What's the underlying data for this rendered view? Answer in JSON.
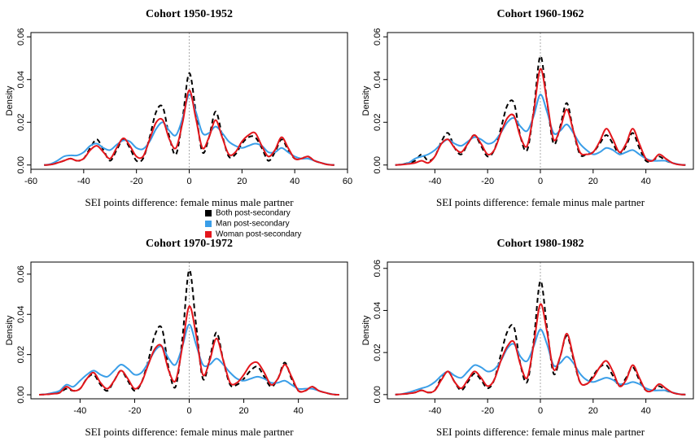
{
  "chart_data": [
    {
      "type": "line",
      "title": "Cohort 1950-1952",
      "x_label": "SEI points difference: female minus male partner",
      "y_label": "Density",
      "x": [
        -55,
        -52.5,
        -50,
        -47.5,
        -45,
        -42.5,
        -40,
        -37.5,
        -35,
        -32.5,
        -30,
        -27.5,
        -25,
        -22.5,
        -20,
        -17.5,
        -15,
        -12.5,
        -10,
        -7.5,
        -5,
        -2.5,
        0,
        2.5,
        5,
        7.5,
        10,
        12.5,
        15,
        17.5,
        20,
        22.5,
        25,
        27.5,
        30,
        32.5,
        35,
        37.5,
        40,
        42.5,
        45,
        47.5,
        50,
        52.5,
        55
      ],
      "series": [
        {
          "name": "Both post-secondary",
          "color": "#000000",
          "line_style": "dashed",
          "values": [
            0,
            0.0002,
            0.001,
            0.002,
            0.003,
            0.002,
            0.003,
            0.008,
            0.012,
            0.007,
            0.002,
            0.007,
            0.012,
            0.008,
            0.002,
            0.003,
            0.013,
            0.025,
            0.027,
            0.013,
            0.005,
            0.022,
            0.043,
            0.025,
            0.006,
            0.013,
            0.025,
            0.014,
            0.004,
            0.005,
            0.01,
            0.013,
            0.013,
            0.008,
            0.002,
            0.006,
            0.012,
            0.007,
            0.003,
            0.003,
            0.004,
            0.002,
            0.001,
            0.0002,
            0
          ]
        },
        {
          "name": "Man post-secondary",
          "color": "#3a9ee8",
          "line_style": "solid",
          "values": [
            0,
            0.0005,
            0.002,
            0.004,
            0.0045,
            0.0045,
            0.006,
            0.009,
            0.01,
            0.008,
            0.007,
            0.0095,
            0.0115,
            0.011,
            0.008,
            0.0075,
            0.011,
            0.017,
            0.02,
            0.016,
            0.014,
            0.022,
            0.033,
            0.025,
            0.015,
            0.015,
            0.018,
            0.015,
            0.011,
            0.009,
            0.008,
            0.009,
            0.01,
            0.009,
            0.006,
            0.006,
            0.008,
            0.006,
            0.004,
            0.003,
            0.003,
            0.002,
            0.001,
            0.0003,
            0
          ]
        },
        {
          "name": "Woman post-secondary",
          "color": "#e3161c",
          "line_style": "solid",
          "values": [
            0,
            0.0002,
            0.001,
            0.002,
            0.003,
            0.002,
            0.003,
            0.007,
            0.009,
            0.006,
            0.003,
            0.008,
            0.0125,
            0.009,
            0.004,
            0.004,
            0.012,
            0.02,
            0.021,
            0.012,
            0.008,
            0.02,
            0.035,
            0.022,
            0.008,
            0.013,
            0.021,
            0.013,
            0.005,
            0.006,
            0.011,
            0.014,
            0.015,
            0.009,
            0.004,
            0.007,
            0.013,
            0.008,
            0.003,
            0.003,
            0.004,
            0.002,
            0.001,
            0.0002,
            0
          ]
        }
      ],
      "xlim": [
        -60,
        60
      ],
      "xticks": [
        -60,
        -40,
        -20,
        0,
        20,
        40,
        60
      ],
      "ylim": [
        -0.002,
        0.062
      ],
      "yticks": [
        {
          "value": 0,
          "label": "0.00"
        },
        {
          "value": 0.02,
          "label": "0.02"
        },
        {
          "value": 0.04,
          "label": "0.04"
        },
        {
          "value": 0.06,
          "label": "0.06"
        }
      ],
      "reference_line_x": 0
    },
    {
      "type": "line",
      "title": "Cohort 1960-1962",
      "x_label": "SEI points difference: female minus male partner",
      "y_label": "Density",
      "x": [
        -55,
        -52.5,
        -50,
        -47.5,
        -45,
        -42.5,
        -40,
        -37.5,
        -35,
        -32.5,
        -30,
        -27.5,
        -25,
        -22.5,
        -20,
        -17.5,
        -15,
        -12.5,
        -10,
        -7.5,
        -5,
        -2.5,
        0,
        2.5,
        5,
        7.5,
        10,
        12.5,
        15,
        17.5,
        20,
        22.5,
        25,
        27.5,
        30,
        32.5,
        35,
        37.5,
        40,
        42.5,
        45,
        47.5,
        50,
        52.5,
        55
      ],
      "series": [
        {
          "name": "Both post-secondary",
          "color": "#000000",
          "line_style": "dashed",
          "values": [
            0,
            0.0003,
            0.001,
            0.002,
            0.005,
            0.002,
            0.004,
            0.011,
            0.015,
            0.008,
            0.005,
            0.01,
            0.014,
            0.009,
            0.004,
            0.007,
            0.017,
            0.028,
            0.029,
            0.013,
            0.007,
            0.026,
            0.051,
            0.03,
            0.01,
            0.018,
            0.029,
            0.016,
            0.005,
            0.005,
            0.006,
            0.01,
            0.014,
            0.01,
            0.005,
            0.009,
            0.015,
            0.008,
            0.002,
            0.002,
            0.004,
            0.002,
            0.001,
            0.0002,
            0
          ]
        },
        {
          "name": "Man post-secondary",
          "color": "#3a9ee8",
          "line_style": "solid",
          "values": [
            0,
            0.0003,
            0.001,
            0.003,
            0.004,
            0.005,
            0.007,
            0.01,
            0.012,
            0.01,
            0.009,
            0.011,
            0.013,
            0.012,
            0.01,
            0.011,
            0.015,
            0.02,
            0.022,
            0.018,
            0.016,
            0.023,
            0.033,
            0.025,
            0.015,
            0.016,
            0.019,
            0.015,
            0.01,
            0.007,
            0.005,
            0.006,
            0.008,
            0.007,
            0.005,
            0.006,
            0.007,
            0.005,
            0.003,
            0.002,
            0.002,
            0.002,
            0.001,
            0.0003,
            0
          ]
        },
        {
          "name": "Woman post-secondary",
          "color": "#e3161c",
          "line_style": "solid",
          "values": [
            0,
            0.0002,
            0.0005,
            0.001,
            0.002,
            0.001,
            0.004,
            0.01,
            0.012,
            0.008,
            0.006,
            0.01,
            0.014,
            0.01,
            0.005,
            0.007,
            0.015,
            0.022,
            0.023,
            0.013,
            0.009,
            0.025,
            0.045,
            0.03,
            0.012,
            0.017,
            0.026,
            0.016,
            0.006,
            0.005,
            0.006,
            0.011,
            0.017,
            0.012,
            0.006,
            0.01,
            0.017,
            0.01,
            0.003,
            0.002,
            0.005,
            0.003,
            0.001,
            0.0002,
            0
          ]
        }
      ],
      "xlim": [
        -58,
        58
      ],
      "xticks": [
        -40,
        -20,
        0,
        20,
        40
      ],
      "ylim": [
        -0.002,
        0.062
      ],
      "yticks": [
        {
          "value": 0,
          "label": "0.00"
        },
        {
          "value": 0.02,
          "label": "0.02"
        },
        {
          "value": 0.04,
          "label": "0.04"
        },
        {
          "value": 0.06,
          "label": "0.06"
        }
      ],
      "reference_line_x": 0
    },
    {
      "type": "line",
      "title": "Cohort 1970-1972",
      "x_label": "SEI points difference: female minus male partner",
      "y_label": "Density",
      "x": [
        -55,
        -52.5,
        -50,
        -47.5,
        -45,
        -42.5,
        -40,
        -37.5,
        -35,
        -32.5,
        -30,
        -27.5,
        -25,
        -22.5,
        -20,
        -17.5,
        -15,
        -12.5,
        -10,
        -7.5,
        -5,
        -2.5,
        0,
        2.5,
        5,
        7.5,
        10,
        12.5,
        15,
        17.5,
        20,
        22.5,
        25,
        27.5,
        30,
        32.5,
        35,
        37.5,
        40,
        42.5,
        45,
        47.5,
        50,
        52.5,
        55
      ],
      "series": [
        {
          "name": "Both post-secondary",
          "color": "#000000",
          "line_style": "dashed",
          "values": [
            0,
            0.0002,
            0.0005,
            0.001,
            0.003,
            0.002,
            0.003,
            0.008,
            0.01,
            0.005,
            0.002,
            0.007,
            0.012,
            0.007,
            0.002,
            0.006,
            0.017,
            0.03,
            0.033,
            0.013,
            0.004,
            0.028,
            0.062,
            0.035,
            0.008,
            0.018,
            0.031,
            0.017,
            0.005,
            0.005,
            0.008,
            0.012,
            0.014,
            0.009,
            0.004,
            0.008,
            0.016,
            0.008,
            0.002,
            0.002,
            0.004,
            0.002,
            0.001,
            0.0002,
            0
          ]
        },
        {
          "name": "Man post-secondary",
          "color": "#3a9ee8",
          "line_style": "solid",
          "values": [
            0,
            0.0003,
            0.001,
            0.002,
            0.005,
            0.004,
            0.007,
            0.01,
            0.012,
            0.01,
            0.009,
            0.012,
            0.015,
            0.013,
            0.01,
            0.011,
            0.016,
            0.022,
            0.024,
            0.018,
            0.015,
            0.024,
            0.035,
            0.025,
            0.015,
            0.015,
            0.018,
            0.015,
            0.011,
            0.008,
            0.007,
            0.008,
            0.009,
            0.008,
            0.006,
            0.006,
            0.007,
            0.005,
            0.003,
            0.003,
            0.003,
            0.002,
            0.001,
            0.0003,
            0
          ]
        },
        {
          "name": "Woman post-secondary",
          "color": "#e3161c",
          "line_style": "solid",
          "values": [
            0,
            0.0002,
            0.0005,
            0.001,
            0.004,
            0.002,
            0.003,
            0.008,
            0.011,
            0.006,
            0.003,
            0.007,
            0.012,
            0.008,
            0.003,
            0.006,
            0.015,
            0.023,
            0.024,
            0.012,
            0.007,
            0.024,
            0.044,
            0.03,
            0.01,
            0.017,
            0.028,
            0.017,
            0.006,
            0.006,
            0.01,
            0.015,
            0.016,
            0.011,
            0.005,
            0.008,
            0.015,
            0.009,
            0.002,
            0.002,
            0.004,
            0.002,
            0.001,
            0.0002,
            0
          ]
        }
      ],
      "xlim": [
        -58,
        58
      ],
      "xticks": [
        -40,
        -20,
        0,
        20,
        40
      ],
      "ylim": [
        -0.002,
        0.066
      ],
      "yticks": [
        {
          "value": 0,
          "label": "0.00"
        },
        {
          "value": 0.02,
          "label": "0.02"
        },
        {
          "value": 0.04,
          "label": "0.04"
        },
        {
          "value": 0.06,
          "label": "0.06"
        }
      ],
      "reference_line_x": 0
    },
    {
      "type": "line",
      "title": "Cohort 1980-1982",
      "x_label": "SEI points difference: female minus male partner",
      "y_label": "Density",
      "x": [
        -55,
        -52.5,
        -50,
        -47.5,
        -45,
        -42.5,
        -40,
        -37.5,
        -35,
        -32.5,
        -30,
        -27.5,
        -25,
        -22.5,
        -20,
        -17.5,
        -15,
        -12.5,
        -10,
        -7.5,
        -5,
        -2.5,
        0,
        2.5,
        5,
        7.5,
        10,
        12.5,
        15,
        17.5,
        20,
        22.5,
        25,
        27.5,
        30,
        32.5,
        35,
        37.5,
        40,
        42.5,
        45,
        47.5,
        50,
        52.5,
        55
      ],
      "series": [
        {
          "name": "Both post-secondary",
          "color": "#000000",
          "line_style": "dashed",
          "values": [
            0,
            0.0002,
            0.0005,
            0.001,
            0.002,
            0.001,
            0.002,
            0.008,
            0.011,
            0.006,
            0.002,
            0.006,
            0.01,
            0.007,
            0.003,
            0.007,
            0.019,
            0.03,
            0.032,
            0.014,
            0.006,
            0.026,
            0.054,
            0.032,
            0.01,
            0.018,
            0.028,
            0.017,
            0.006,
            0.005,
            0.009,
            0.013,
            0.014,
            0.009,
            0.004,
            0.008,
            0.013,
            0.007,
            0.002,
            0.002,
            0.004,
            0.002,
            0.001,
            0.0002,
            0
          ]
        },
        {
          "name": "Man post-secondary",
          "color": "#3a9ee8",
          "line_style": "solid",
          "values": [
            0,
            0.0003,
            0.001,
            0.002,
            0.003,
            0.004,
            0.006,
            0.009,
            0.011,
            0.009,
            0.008,
            0.011,
            0.014,
            0.013,
            0.011,
            0.012,
            0.016,
            0.022,
            0.024,
            0.018,
            0.016,
            0.023,
            0.031,
            0.024,
            0.014,
            0.015,
            0.018,
            0.015,
            0.01,
            0.007,
            0.006,
            0.007,
            0.008,
            0.007,
            0.005,
            0.005,
            0.006,
            0.005,
            0.003,
            0.002,
            0.002,
            0.002,
            0.001,
            0.0003,
            0
          ]
        },
        {
          "name": "Woman post-secondary",
          "color": "#e3161c",
          "line_style": "solid",
          "values": [
            0,
            0.0002,
            0.0005,
            0.001,
            0.002,
            0.001,
            0.002,
            0.007,
            0.011,
            0.006,
            0.003,
            0.007,
            0.011,
            0.008,
            0.004,
            0.007,
            0.016,
            0.023,
            0.025,
            0.014,
            0.008,
            0.024,
            0.043,
            0.03,
            0.012,
            0.018,
            0.029,
            0.018,
            0.006,
            0.005,
            0.008,
            0.013,
            0.016,
            0.011,
            0.004,
            0.007,
            0.014,
            0.008,
            0.002,
            0.002,
            0.005,
            0.003,
            0.001,
            0.0002,
            0
          ]
        }
      ],
      "xlim": [
        -58,
        58
      ],
      "xticks": [
        -40,
        -20,
        0,
        20,
        40
      ],
      "ylim": [
        -0.002,
        0.063
      ],
      "yticks": [
        {
          "value": 0,
          "label": "0.00"
        },
        {
          "value": 0.02,
          "label": "0.02"
        },
        {
          "value": 0.04,
          "label": "0.04"
        },
        {
          "value": 0.06,
          "label": "0.06"
        }
      ],
      "reference_line_x": 0
    }
  ]
}
